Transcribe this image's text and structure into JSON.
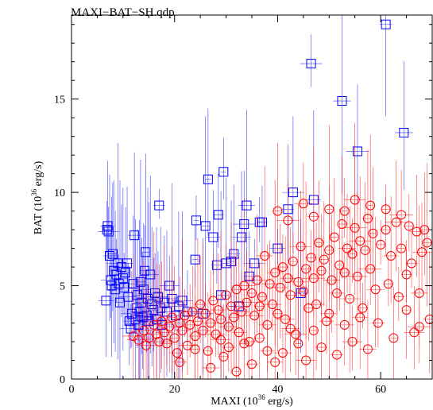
{
  "chart_data": {
    "type": "scatter",
    "title": "MAXI−BAT−SH.qdp",
    "xlabel": {
      "prefix": "MAXI (10",
      "sup": "36",
      "suffix": " erg/s)"
    },
    "ylabel": {
      "prefix": "BAT (10",
      "sup": "36",
      "suffix": " erg/s)"
    },
    "xlim": [
      0,
      70
    ],
    "ylim": [
      0,
      19.5
    ],
    "xticks": [
      0,
      20,
      40,
      60
    ],
    "yticks": [
      0,
      5,
      10,
      15
    ],
    "colors": {
      "blue": "#0000ff",
      "red": "#ff0000",
      "axis": "#000000"
    },
    "series": [
      {
        "marker": "square",
        "color": "#0000ff",
        "points": [
          [
            6.7,
            4.2
          ],
          [
            6.9,
            8.0
          ],
          [
            7.0,
            8.2
          ],
          [
            7.2,
            7.9
          ],
          [
            7.4,
            6.6
          ],
          [
            7.6,
            5.3
          ],
          [
            7.8,
            5.0
          ],
          [
            8.0,
            6.7
          ],
          [
            8.2,
            5.8
          ],
          [
            8.5,
            4.8
          ],
          [
            8.7,
            5.6
          ],
          [
            9.0,
            6.2
          ],
          [
            9.2,
            5.1
          ],
          [
            9.4,
            4.1
          ],
          [
            9.7,
            6.0
          ],
          [
            10.0,
            5.4
          ],
          [
            10.2,
            4.9
          ],
          [
            10.5,
            5.7
          ],
          [
            10.8,
            6.2
          ],
          [
            11.0,
            4.4
          ],
          [
            11.2,
            3.1
          ],
          [
            11.5,
            2.7
          ],
          [
            11.7,
            3.5
          ],
          [
            12.0,
            5.1
          ],
          [
            12.2,
            7.7
          ],
          [
            12.4,
            3.2
          ],
          [
            12.6,
            3.8
          ],
          [
            12.8,
            4.5
          ],
          [
            13.0,
            2.9
          ],
          [
            13.2,
            3.6
          ],
          [
            13.4,
            5.2
          ],
          [
            13.6,
            4.1
          ],
          [
            13.8,
            3.3
          ],
          [
            14.0,
            4.8
          ],
          [
            14.2,
            5.8
          ],
          [
            14.4,
            6.8
          ],
          [
            14.6,
            3.4
          ],
          [
            14.8,
            4.3
          ],
          [
            15.0,
            3.1
          ],
          [
            15.3,
            5.6
          ],
          [
            15.6,
            4.0
          ],
          [
            15.9,
            3.7
          ],
          [
            16.2,
            4.6
          ],
          [
            16.5,
            3.2
          ],
          [
            16.8,
            4.4
          ],
          [
            17.0,
            9.3
          ],
          [
            17.3,
            3.8
          ],
          [
            17.6,
            2.9
          ],
          [
            18.0,
            4.1
          ],
          [
            18.5,
            3.6
          ],
          [
            19.0,
            5.0
          ],
          [
            19.5,
            4.3
          ],
          [
            20.2,
            3.4
          ],
          [
            20.8,
            3.9
          ],
          [
            21.5,
            4.2
          ],
          [
            22.5,
            3.6
          ],
          [
            24.0,
            6.4
          ],
          [
            24.2,
            8.5
          ],
          [
            25.5,
            3.5
          ],
          [
            26.0,
            8.2
          ],
          [
            26.5,
            10.7
          ],
          [
            27.5,
            7.6
          ],
          [
            28.2,
            6.1
          ],
          [
            28.5,
            8.8
          ],
          [
            29.0,
            4.5
          ],
          [
            29.5,
            11.1
          ],
          [
            30.0,
            6.2
          ],
          [
            31.0,
            6.3
          ],
          [
            31.5,
            6.7
          ],
          [
            32.5,
            3.9
          ],
          [
            33.0,
            7.6
          ],
          [
            33.5,
            8.3
          ],
          [
            34.0,
            9.3
          ],
          [
            34.5,
            5.5
          ],
          [
            35.5,
            6.2
          ],
          [
            36.5,
            8.4
          ],
          [
            37.0,
            8.4
          ],
          [
            40.0,
            7.0
          ],
          [
            42.0,
            9.1
          ],
          [
            43.0,
            10.0
          ],
          [
            44.5,
            4.6
          ],
          [
            46.5,
            16.9
          ],
          [
            47.0,
            9.6
          ],
          [
            52.5,
            14.9
          ],
          [
            55.5,
            12.2
          ],
          [
            61.0,
            19.0
          ],
          [
            64.5,
            13.2
          ]
        ]
      },
      {
        "marker": "circle",
        "color": "#ff0000",
        "points": [
          [
            12.0,
            2.3
          ],
          [
            13.0,
            2.1
          ],
          [
            14.0,
            2.6
          ],
          [
            15.0,
            2.2
          ],
          [
            16.0,
            2.9
          ],
          [
            16.5,
            2.4
          ],
          [
            17.0,
            2.0
          ],
          [
            17.5,
            3.1
          ],
          [
            18.0,
            2.5
          ],
          [
            18.5,
            1.9
          ],
          [
            19.0,
            2.8
          ],
          [
            19.5,
            3.3
          ],
          [
            20.0,
            2.2
          ],
          [
            20.5,
            1.4
          ],
          [
            21.0,
            3.0
          ],
          [
            21.5,
            2.6
          ],
          [
            22.0,
            3.4
          ],
          [
            22.5,
            1.8
          ],
          [
            23.0,
            2.9
          ],
          [
            23.5,
            3.6
          ],
          [
            24.0,
            2.3
          ],
          [
            24.5,
            3.1
          ],
          [
            25.0,
            4.0
          ],
          [
            25.5,
            2.6
          ],
          [
            26.0,
            3.5
          ],
          [
            26.5,
            1.5
          ],
          [
            27.0,
            3.0
          ],
          [
            27.5,
            4.2
          ],
          [
            28.0,
            2.4
          ],
          [
            28.5,
            3.7
          ],
          [
            29.0,
            3.2
          ],
          [
            29.5,
            1.2
          ],
          [
            30.0,
            4.5
          ],
          [
            30.5,
            2.8
          ],
          [
            31.0,
            3.9
          ],
          [
            31.5,
            3.3
          ],
          [
            32.0,
            4.8
          ],
          [
            32.5,
            2.5
          ],
          [
            33.0,
            3.6
          ],
          [
            33.5,
            5.0
          ],
          [
            34.0,
            4.1
          ],
          [
            34.5,
            2.0
          ],
          [
            35.0,
            4.6
          ],
          [
            35.5,
            3.4
          ],
          [
            36.0,
            5.3
          ],
          [
            36.5,
            3.9
          ],
          [
            37.0,
            4.4
          ],
          [
            37.5,
            6.6
          ],
          [
            38.0,
            2.9
          ],
          [
            38.5,
            5.1
          ],
          [
            39.0,
            4.0
          ],
          [
            39.5,
            5.7
          ],
          [
            40.0,
            3.5
          ],
          [
            40.5,
            4.9
          ],
          [
            41.0,
            6.0
          ],
          [
            41.5,
            3.2
          ],
          [
            42.0,
            5.4
          ],
          [
            42.5,
            4.5
          ],
          [
            43.0,
            6.3
          ],
          [
            43.5,
            2.4
          ],
          [
            44.0,
            5.2
          ],
          [
            44.5,
            7.1
          ],
          [
            45.0,
            4.7
          ],
          [
            45.5,
            5.9
          ],
          [
            46.0,
            3.8
          ],
          [
            46.5,
            6.5
          ],
          [
            47.0,
            5.4
          ],
          [
            47.5,
            4.0
          ],
          [
            48.0,
            7.3
          ],
          [
            48.5,
            5.8
          ],
          [
            49.0,
            6.4
          ],
          [
            49.5,
            3.1
          ],
          [
            50.0,
            6.9
          ],
          [
            50.5,
            5.3
          ],
          [
            51.0,
            7.6
          ],
          [
            51.5,
            4.6
          ],
          [
            52.0,
            6.1
          ],
          [
            52.5,
            8.3
          ],
          [
            53.0,
            5.7
          ],
          [
            53.5,
            7.0
          ],
          [
            54.0,
            4.3
          ],
          [
            54.5,
            6.7
          ],
          [
            55.0,
            8.1
          ],
          [
            55.5,
            5.5
          ],
          [
            56.0,
            7.4
          ],
          [
            56.5,
            3.8
          ],
          [
            57.0,
            6.9
          ],
          [
            57.5,
            8.6
          ],
          [
            58.0,
            5.9
          ],
          [
            58.5,
            7.8
          ],
          [
            59.0,
            4.8
          ],
          [
            60.0,
            7.2
          ],
          [
            61.0,
            8.0
          ],
          [
            61.5,
            5.1
          ],
          [
            62.0,
            6.6
          ],
          [
            63.0,
            8.4
          ],
          [
            63.5,
            4.4
          ],
          [
            64.0,
            7.0
          ],
          [
            65.0,
            5.6
          ],
          [
            65.5,
            8.2
          ],
          [
            66.0,
            6.2
          ],
          [
            66.5,
            2.5
          ],
          [
            67.0,
            7.9
          ],
          [
            67.5,
            4.6
          ],
          [
            68.0,
            6.8
          ],
          [
            68.5,
            8.0
          ],
          [
            69.0,
            7.3
          ],
          [
            69.5,
            3.2
          ],
          [
            14.5,
            1.8
          ],
          [
            21.0,
            0.9
          ],
          [
            24.0,
            1.6
          ],
          [
            27.0,
            0.6
          ],
          [
            29.0,
            2.1
          ],
          [
            30.5,
            1.7
          ],
          [
            32.0,
            0.4
          ],
          [
            33.5,
            1.9
          ],
          [
            35.0,
            0.8
          ],
          [
            36.5,
            2.2
          ],
          [
            38.0,
            1.5
          ],
          [
            39.5,
            0.9
          ],
          [
            41.0,
            1.4
          ],
          [
            42.5,
            2.7
          ],
          [
            44.0,
            1.9
          ],
          [
            45.5,
            1.0
          ],
          [
            47.0,
            2.6
          ],
          [
            48.5,
            1.7
          ],
          [
            50.0,
            3.5
          ],
          [
            51.5,
            1.3
          ],
          [
            53.0,
            2.9
          ],
          [
            54.5,
            2.0
          ],
          [
            56.0,
            3.3
          ],
          [
            57.5,
            1.6
          ],
          [
            59.5,
            3.0
          ],
          [
            62.5,
            2.2
          ],
          [
            65.0,
            3.7
          ],
          [
            67.5,
            2.8
          ],
          [
            40.0,
            9.0
          ],
          [
            42.0,
            8.5
          ],
          [
            45.0,
            9.4
          ],
          [
            47.0,
            8.7
          ],
          [
            50.0,
            9.1
          ],
          [
            53.0,
            9.0
          ],
          [
            55.0,
            9.6
          ],
          [
            58.0,
            9.3
          ],
          [
            61.0,
            9.1
          ],
          [
            64.0,
            8.8
          ]
        ]
      }
    ]
  }
}
